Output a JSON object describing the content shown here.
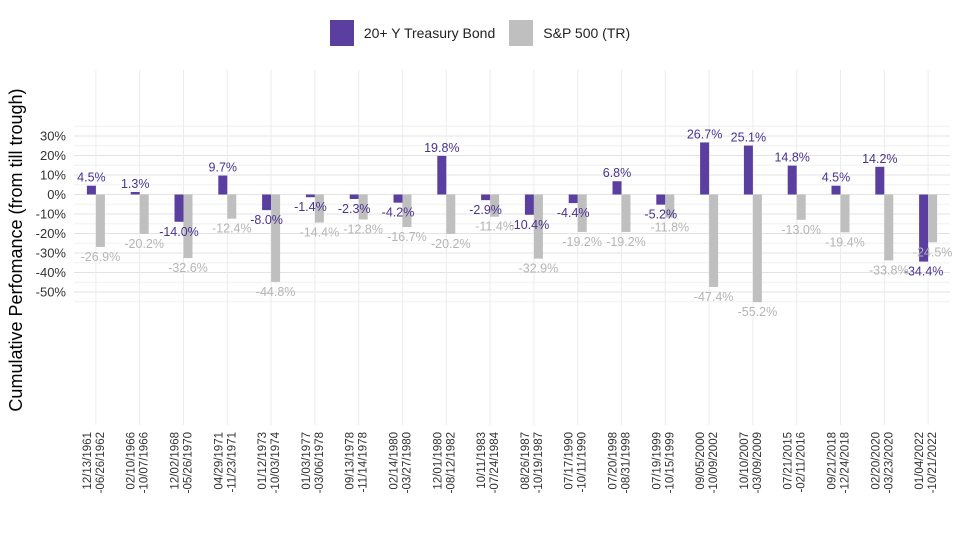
{
  "chart_data": {
    "type": "bar",
    "title": "",
    "xlabel": "",
    "ylabel": "Cumulative Perfomance (from till trough)",
    "ylim": [
      -56,
      31
    ],
    "yticks": [
      30,
      20,
      10,
      0,
      -10,
      -20,
      -30,
      -40,
      -50
    ],
    "ytick_labels": [
      "30%",
      "20%",
      "10%",
      "0%",
      "-10%",
      "-20%",
      "-30%",
      "-40%",
      "-50%"
    ],
    "grid": true,
    "legend_position": "top-center",
    "categories": [
      "12/13/1961\n-06/26/1962",
      "02/10/1966\n-10/07/1966",
      "12/02/1968\n-05/26/1970",
      "04/29/1971\n-11/23/1971",
      "01/12/1973\n-10/03/1974",
      "01/03/1977\n-03/06/1978",
      "09/13/1978\n-11/14/1978",
      "02/14/1980\n-03/27/1980",
      "12/01/1980\n-08/12/1982",
      "10/11/1983\n-07/24/1984",
      "08/26/1987\n-10/19/1987",
      "07/17/1990\n-10/11/1990",
      "07/20/1998\n-08/31/1998",
      "07/19/1999\n-10/15/1999",
      "09/05/2000\n-10/09/2002",
      "10/10/2007\n-03/09/2009",
      "07/21/2015\n-02/11/2016",
      "09/21/2018\n-12/24/2018",
      "02/20/2020\n-03/23/2020",
      "01/04/2022\n-10/21/2022"
    ],
    "series": [
      {
        "name": "20+ Y Treasury Bond",
        "color": "#5b3fa0",
        "values": [
          4.5,
          1.3,
          -14.0,
          9.7,
          -8.0,
          -1.4,
          -2.3,
          -4.2,
          19.8,
          -2.9,
          -10.4,
          -4.4,
          6.8,
          -5.2,
          26.7,
          25.1,
          14.8,
          4.5,
          14.2,
          -34.4
        ],
        "labels": [
          "4.5%",
          "1.3%",
          "-14.0%",
          "9.7%",
          "-8.0%",
          "-1.4%",
          "-2.3%",
          "-4.2%",
          "19.8%",
          "-2.9%",
          "-10.4%",
          "-4.4%",
          "6.8%",
          "-5.2%",
          "26.7%",
          "25.1%",
          "14.8%",
          "4.5%",
          "14.2%",
          "-34.4%"
        ]
      },
      {
        "name": "S&P 500 (TR)",
        "color": "#bfbfbf",
        "values": [
          -26.9,
          -20.2,
          -32.6,
          -12.4,
          -44.8,
          -14.4,
          -12.8,
          -16.7,
          -20.2,
          -11.4,
          -32.9,
          -19.2,
          -19.2,
          -11.8,
          -47.4,
          -55.2,
          -13.0,
          -19.4,
          -33.8,
          -24.5
        ],
        "labels": [
          "-26.9%",
          "-20.2%",
          "-32.6%",
          "-12.4%",
          "-44.8%",
          "-14.4%",
          "-12.8%",
          "-16.7%",
          "-20.2%",
          "-11.4%",
          "-32.9%",
          "-19.2%",
          "-19.2%",
          "-11.8%",
          "-47.4%",
          "-55.2%",
          "-13.0%",
          "-19.4%",
          "-33.8%",
          "-24.5%"
        ]
      }
    ]
  }
}
